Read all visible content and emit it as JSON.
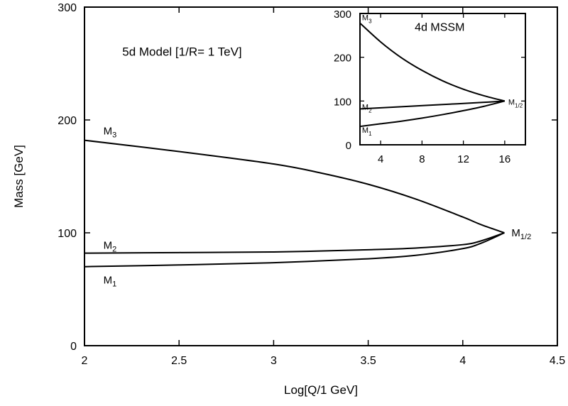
{
  "chart_data": [
    {
      "type": "line",
      "title": "",
      "xlabel": "Log[Q/1 GeV]",
      "ylabel": "Mass [GeV]",
      "xlim": [
        2,
        4.5
      ],
      "ylim": [
        0,
        300
      ],
      "x_ticks": [
        2,
        2.5,
        3,
        3.5,
        4,
        4.5
      ],
      "x_tick_labels": [
        "2",
        "2.5",
        "3",
        "3.5",
        "4",
        "4.5"
      ],
      "y_ticks": [
        0,
        100,
        200,
        300
      ],
      "y_tick_labels": [
        "0",
        "100",
        "200",
        "300"
      ],
      "grid": false,
      "annotation": "5d Model [1/R= 1 TeV]",
      "series": [
        {
          "label": {
            "base": "M",
            "sub": "3"
          },
          "points": [
            [
              2.0,
              182
            ],
            [
              2.5,
              172
            ],
            [
              3.0,
              161
            ],
            [
              3.25,
              153
            ],
            [
              3.5,
              143
            ],
            [
              3.75,
              130
            ],
            [
              4.0,
              114
            ],
            [
              4.1,
              107
            ],
            [
              4.22,
              100
            ]
          ]
        },
        {
          "label": {
            "base": "M",
            "sub": "2"
          },
          "points": [
            [
              2.0,
              82
            ],
            [
              2.5,
              82.5
            ],
            [
              3.0,
              83
            ],
            [
              3.5,
              85
            ],
            [
              3.75,
              86.5
            ],
            [
              4.0,
              89.5
            ],
            [
              4.1,
              93
            ],
            [
              4.22,
              100
            ]
          ]
        },
        {
          "label": {
            "base": "M",
            "sub": "1"
          },
          "points": [
            [
              2.0,
              70
            ],
            [
              2.5,
              71.5
            ],
            [
              3.0,
              73.5
            ],
            [
              3.5,
              77
            ],
            [
              3.75,
              80
            ],
            [
              4.0,
              86
            ],
            [
              4.1,
              91
            ],
            [
              4.22,
              100
            ]
          ]
        }
      ],
      "convergence_label": {
        "base": "M",
        "sub": "1/2"
      }
    },
    {
      "type": "line",
      "title": "",
      "xlabel": "",
      "ylabel": "",
      "xlim": [
        2,
        18
      ],
      "ylim": [
        0,
        300
      ],
      "x_ticks": [
        4,
        8,
        12,
        16
      ],
      "x_tick_labels": [
        "4",
        "8",
        "12",
        "16"
      ],
      "y_ticks": [
        0,
        100,
        200,
        300
      ],
      "y_tick_labels": [
        "0",
        "100",
        "200",
        "300"
      ],
      "grid": false,
      "annotation": "4d MSSM",
      "series": [
        {
          "label": {
            "base": "M",
            "sub": "3"
          },
          "points": [
            [
              2,
              278
            ],
            [
              4,
              235
            ],
            [
              6,
              199
            ],
            [
              8,
              170
            ],
            [
              10,
              146
            ],
            [
              12,
              127
            ],
            [
              14,
              112
            ],
            [
              16,
              100
            ]
          ]
        },
        {
          "label": {
            "base": "M",
            "sub": "2"
          },
          "points": [
            [
              2,
              82
            ],
            [
              6,
              87
            ],
            [
              10,
              92
            ],
            [
              14,
              97
            ],
            [
              16,
              100
            ]
          ]
        },
        {
          "label": {
            "base": "M",
            "sub": "1"
          },
          "points": [
            [
              2,
              42
            ],
            [
              4,
              48
            ],
            [
              6,
              54
            ],
            [
              8,
              61
            ],
            [
              10,
              69
            ],
            [
              12,
              78
            ],
            [
              14,
              88
            ],
            [
              16,
              100
            ]
          ]
        }
      ],
      "convergence_label": {
        "base": "M",
        "sub": "1/2"
      }
    }
  ]
}
